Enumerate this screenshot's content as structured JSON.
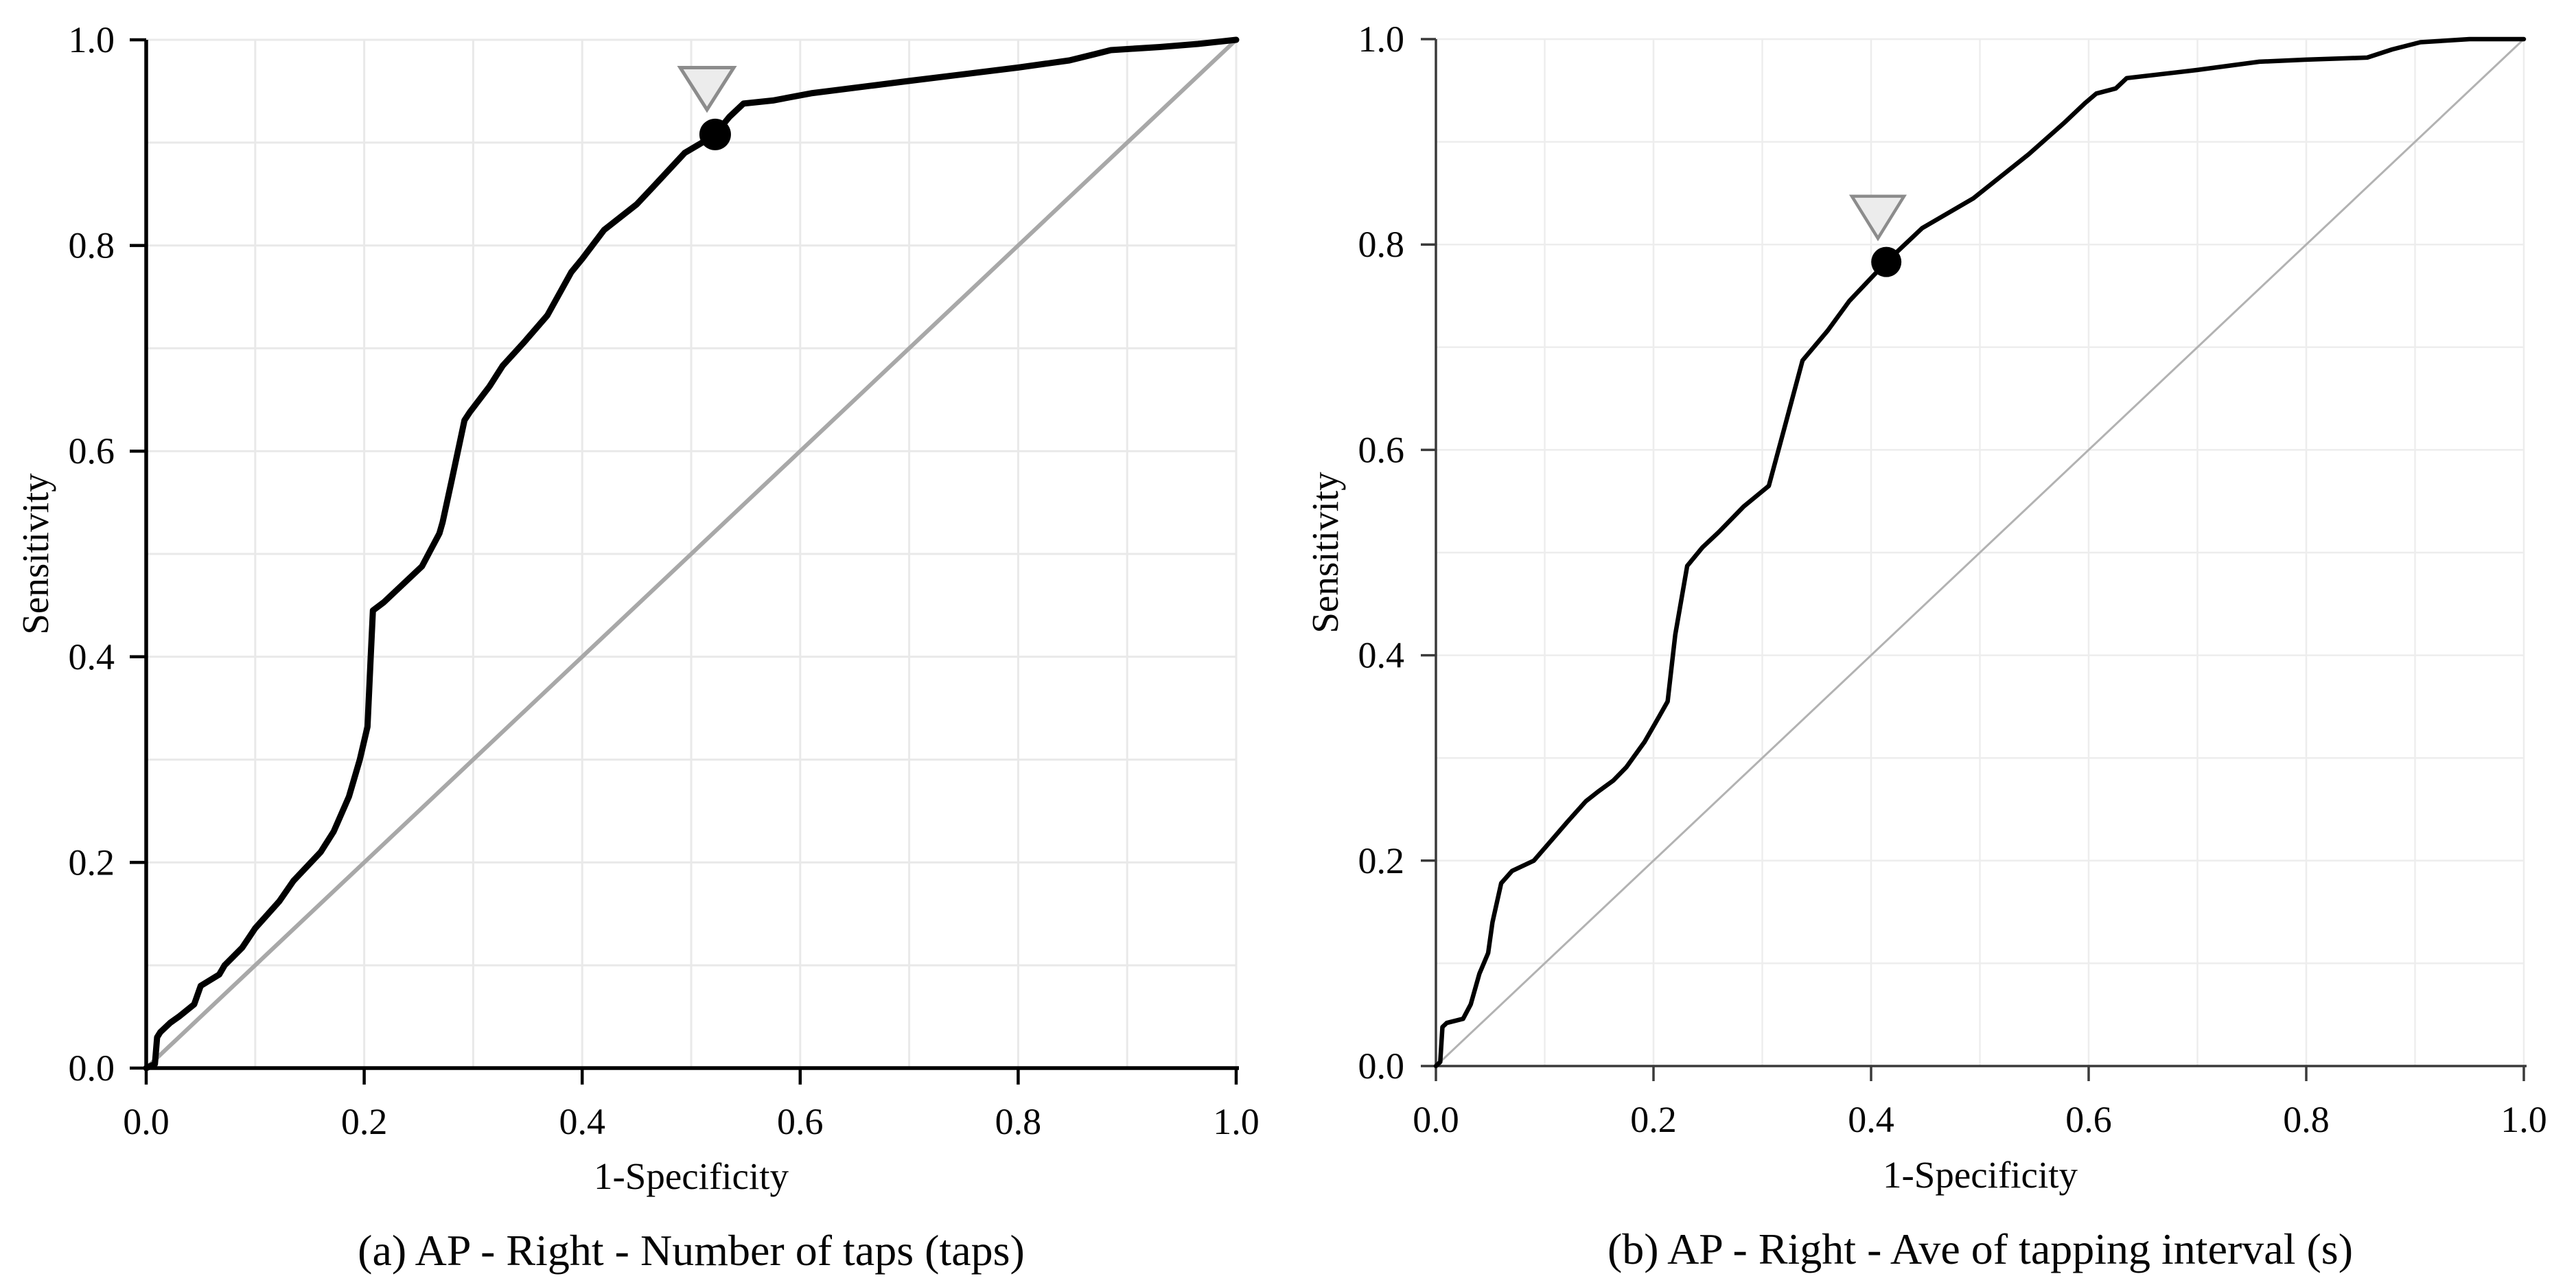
{
  "figure": {
    "background": "#ffffff",
    "description": "Two ROC curve panels with operating-point markers"
  },
  "chart_data": [
    {
      "type": "line",
      "panel": "a",
      "caption": "(a) AP - Right - Number of taps (taps)",
      "xlabel": "1-Specificity",
      "ylabel": "Sensitivity",
      "xlim": [
        0.0,
        1.0
      ],
      "ylim": [
        0.0,
        1.0
      ],
      "xticks": [
        "0.0",
        "0.2",
        "0.4",
        "0.6",
        "0.8",
        "1.0"
      ],
      "yticks": [
        "0.0",
        "0.2",
        "0.4",
        "0.6",
        "0.8",
        "1.0"
      ],
      "grid": true,
      "grid_step": 0.1,
      "diagonal_reference": true,
      "legend": "none",
      "colors": {
        "curve": "#000000",
        "diagonal": "#a8a8a8",
        "grid": "#e9e9e9",
        "axis": "#000000",
        "marker": "#000000",
        "arrow_fill": "#ececec",
        "arrow_stroke": "#8c8c8c"
      },
      "operating_point": {
        "x": 0.522,
        "y": 0.908
      },
      "arrow_marker": {
        "x": 0.5145,
        "y_top": 0.973,
        "y_apex": 0.932
      },
      "roc_points": [
        [
          0,
          0
        ],
        [
          0.008,
          0.004
        ],
        [
          0.01,
          0.03
        ],
        [
          0.013,
          0.035
        ],
        [
          0.022,
          0.044
        ],
        [
          0.03,
          0.05
        ],
        [
          0.044,
          0.062
        ],
        [
          0.05,
          0.08
        ],
        [
          0.067,
          0.091
        ],
        [
          0.072,
          0.1
        ],
        [
          0.088,
          0.117
        ],
        [
          0.1,
          0.136
        ],
        [
          0.122,
          0.162
        ],
        [
          0.135,
          0.182
        ],
        [
          0.16,
          0.21
        ],
        [
          0.172,
          0.23
        ],
        [
          0.186,
          0.264
        ],
        [
          0.196,
          0.3
        ],
        [
          0.203,
          0.332
        ],
        [
          0.206,
          0.4
        ],
        [
          0.208,
          0.445
        ],
        [
          0.218,
          0.453
        ],
        [
          0.24,
          0.475
        ],
        [
          0.253,
          0.488
        ],
        [
          0.269,
          0.52
        ],
        [
          0.272,
          0.531
        ],
        [
          0.28,
          0.57
        ],
        [
          0.292,
          0.63
        ],
        [
          0.297,
          0.638
        ],
        [
          0.315,
          0.663
        ],
        [
          0.327,
          0.683
        ],
        [
          0.346,
          0.705
        ],
        [
          0.368,
          0.732
        ],
        [
          0.39,
          0.774
        ],
        [
          0.4,
          0.787
        ],
        [
          0.42,
          0.815
        ],
        [
          0.45,
          0.84
        ],
        [
          0.466,
          0.858
        ],
        [
          0.494,
          0.89
        ],
        [
          0.51,
          0.9
        ],
        [
          0.522,
          0.908
        ],
        [
          0.535,
          0.925
        ],
        [
          0.548,
          0.938
        ],
        [
          0.575,
          0.941
        ],
        [
          0.61,
          0.948
        ],
        [
          0.7,
          0.96
        ],
        [
          0.8,
          0.973
        ],
        [
          0.847,
          0.98
        ],
        [
          0.87,
          0.986
        ],
        [
          0.885,
          0.99
        ],
        [
          0.93,
          0.993
        ],
        [
          0.965,
          0.996
        ],
        [
          1,
          1
        ]
      ]
    },
    {
      "type": "line",
      "panel": "b",
      "caption": "(b) AP - Right - Ave of tapping interval (s)",
      "xlabel": "1-Specificity",
      "ylabel": "Sensitivity",
      "xlim": [
        0.0,
        1.0
      ],
      "ylim": [
        0.0,
        1.0
      ],
      "xticks": [
        "0.0",
        "0.2",
        "0.4",
        "0.6",
        "0.8",
        "1.0"
      ],
      "yticks": [
        "0.0",
        "0.2",
        "0.4",
        "0.6",
        "0.8",
        "1.0"
      ],
      "grid": true,
      "grid_step": 0.1,
      "diagonal_reference": true,
      "legend": "none",
      "colors": {
        "curve": "#000000",
        "diagonal": "#b2b2b2",
        "grid": "#ededed",
        "axis": "#3a3a3a",
        "marker": "#000000",
        "arrow_fill": "#ececec",
        "arrow_stroke": "#8c8c8c"
      },
      "operating_point": {
        "x": 0.414,
        "y": 0.783
      },
      "arrow_marker": {
        "x": 0.4063,
        "y_top": 0.847,
        "y_apex": 0.806
      },
      "roc_points": [
        [
          0,
          0
        ],
        [
          0.004,
          0.004
        ],
        [
          0.006,
          0.038
        ],
        [
          0.01,
          0.042
        ],
        [
          0.025,
          0.046
        ],
        [
          0.032,
          0.06
        ],
        [
          0.04,
          0.09
        ],
        [
          0.048,
          0.11
        ],
        [
          0.052,
          0.14
        ],
        [
          0.06,
          0.178
        ],
        [
          0.07,
          0.19
        ],
        [
          0.09,
          0.2
        ],
        [
          0.108,
          0.222
        ],
        [
          0.121,
          0.238
        ],
        [
          0.138,
          0.258
        ],
        [
          0.15,
          0.268
        ],
        [
          0.163,
          0.278
        ],
        [
          0.175,
          0.291
        ],
        [
          0.192,
          0.316
        ],
        [
          0.205,
          0.34
        ],
        [
          0.213,
          0.355
        ],
        [
          0.22,
          0.42
        ],
        [
          0.231,
          0.487
        ],
        [
          0.245,
          0.505
        ],
        [
          0.26,
          0.52
        ],
        [
          0.283,
          0.545
        ],
        [
          0.298,
          0.558
        ],
        [
          0.306,
          0.565
        ],
        [
          0.32,
          0.62
        ],
        [
          0.337,
          0.687
        ],
        [
          0.36,
          0.716
        ],
        [
          0.38,
          0.745
        ],
        [
          0.414,
          0.783
        ],
        [
          0.447,
          0.816
        ],
        [
          0.494,
          0.845
        ],
        [
          0.545,
          0.888
        ],
        [
          0.577,
          0.918
        ],
        [
          0.597,
          0.938
        ],
        [
          0.607,
          0.947
        ],
        [
          0.625,
          0.952
        ],
        [
          0.635,
          0.962
        ],
        [
          0.7,
          0.97
        ],
        [
          0.757,
          0.978
        ],
        [
          0.8,
          0.98
        ],
        [
          0.856,
          0.982
        ],
        [
          0.879,
          0.99
        ],
        [
          0.905,
          0.997
        ],
        [
          0.95,
          1.0
        ],
        [
          1,
          1
        ]
      ]
    }
  ]
}
